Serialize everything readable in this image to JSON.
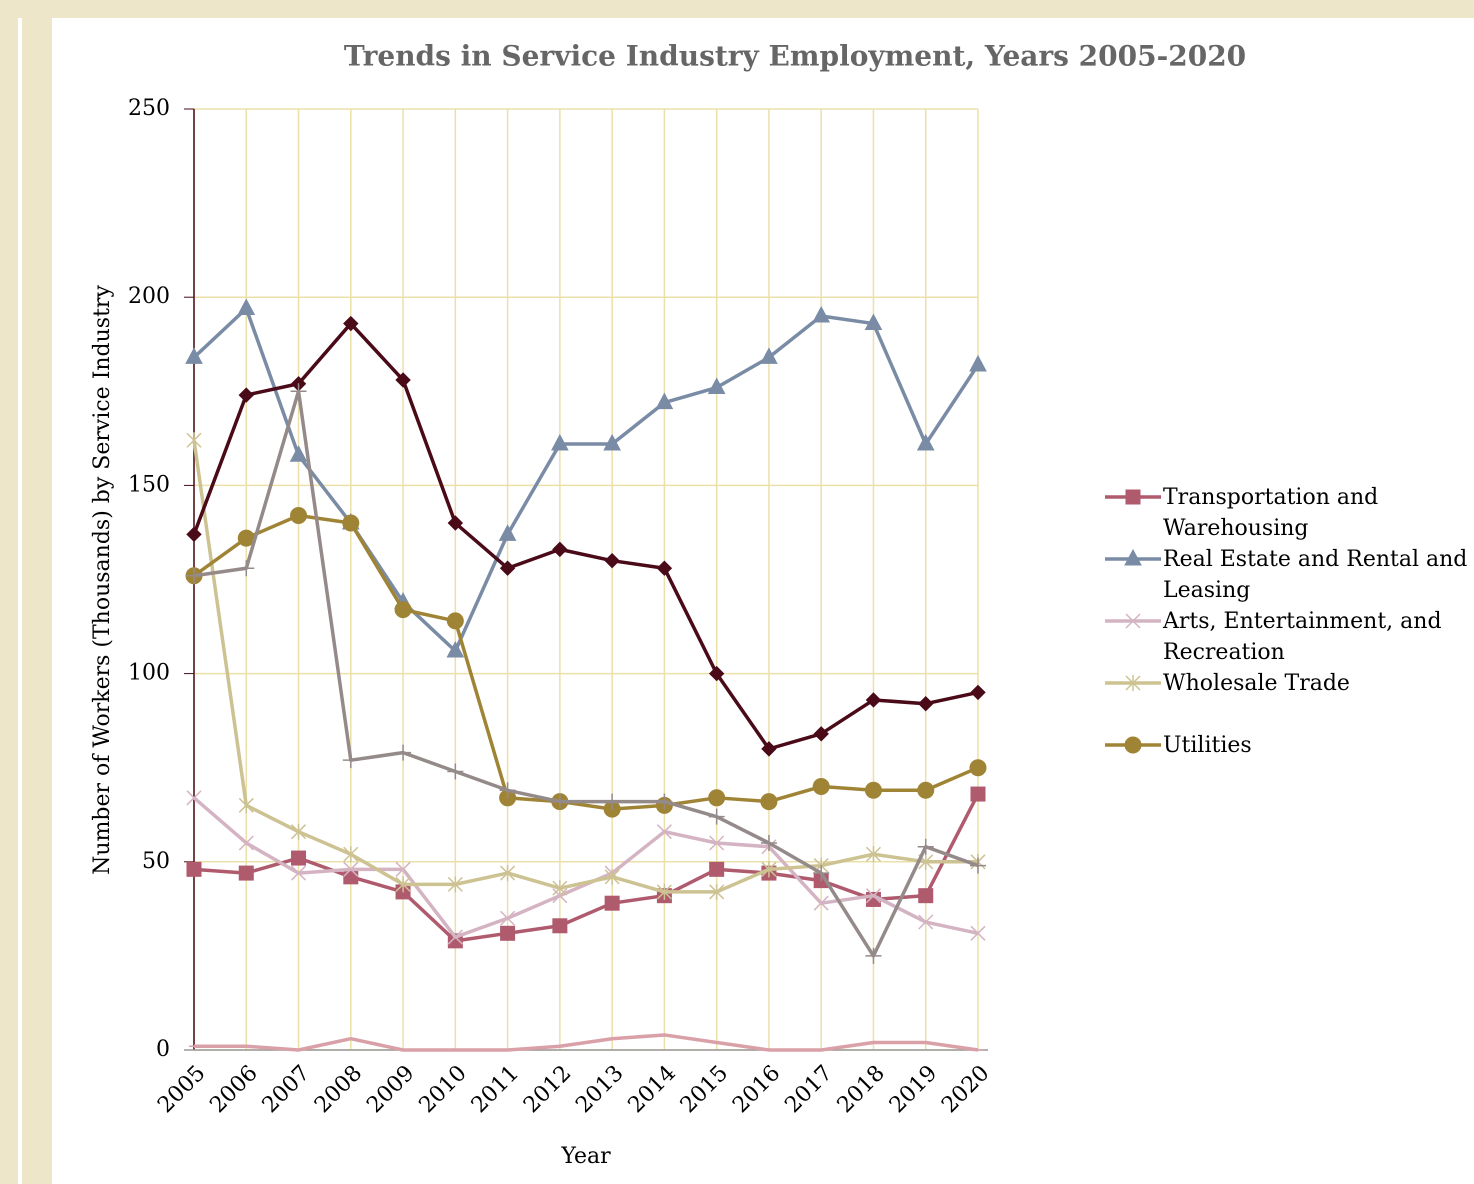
{
  "chart_data": {
    "type": "line",
    "title": "Trends in Service Industry Employment, Years 2005-2020",
    "x_label": "Year",
    "y_label": "Number of Workers (Thousands) by Service Industry",
    "categories": [
      "2005",
      "2006",
      "2007",
      "2008",
      "2009",
      "2010",
      "2011",
      "2012",
      "2013",
      "2014",
      "2015",
      "2016",
      "2017",
      "2018",
      "2019",
      "2020"
    ],
    "ylim": [
      0,
      250
    ],
    "yticks": [
      0,
      50,
      100,
      150,
      200,
      250
    ],
    "grid": true,
    "legend": "right",
    "series": [
      {
        "name": "Transportation and Warehousing",
        "color": "#b05a6e",
        "marker": "square",
        "values": [
          48,
          47,
          51,
          46,
          42,
          29,
          31,
          33,
          39,
          41,
          48,
          47,
          45,
          40,
          41,
          68
        ]
      },
      {
        "name": "Real Estate and Rental and Leasing",
        "color": "#7a8ba5",
        "marker": "triangle",
        "values": [
          184,
          197,
          158,
          140,
          119,
          106,
          137,
          161,
          161,
          172,
          176,
          184,
          195,
          193,
          161,
          182
        ]
      },
      {
        "name": "Arts, Entertainment, and Recreation",
        "color": "#d4b3c3",
        "marker": "x",
        "values": [
          67,
          55,
          47,
          48,
          48,
          30,
          35,
          41,
          47,
          58,
          55,
          54,
          39,
          41,
          34,
          31
        ]
      },
      {
        "name": "Wholesale Trade",
        "color": "#cdc292",
        "marker": "star",
        "values": [
          162,
          65,
          58,
          52,
          44,
          44,
          47,
          43,
          46,
          42,
          42,
          48,
          49,
          52,
          50,
          50
        ]
      },
      {
        "name": "Utilities",
        "color": "#a08436",
        "marker": "circle",
        "values": [
          126,
          136,
          142,
          140,
          117,
          114,
          67,
          66,
          64,
          65,
          67,
          66,
          70,
          69,
          69,
          75
        ]
      },
      {
        "color": "#4a0a18",
        "marker": "diamond",
        "values": [
          137,
          174,
          177,
          193,
          178,
          140,
          128,
          133,
          130,
          128,
          100,
          80,
          84,
          93,
          92,
          95
        ]
      },
      {
        "color": "#958a8a",
        "marker": "plus",
        "values": [
          126,
          128,
          175,
          77,
          79,
          74,
          69,
          66,
          66,
          66,
          62,
          55,
          47,
          25,
          54,
          49
        ]
      },
      {
        "color": "#d9a0a8",
        "marker": "dash",
        "values": [
          1,
          1,
          0,
          3,
          0,
          0,
          0,
          1,
          3,
          4,
          2,
          0,
          0,
          2,
          2,
          0
        ]
      }
    ]
  }
}
